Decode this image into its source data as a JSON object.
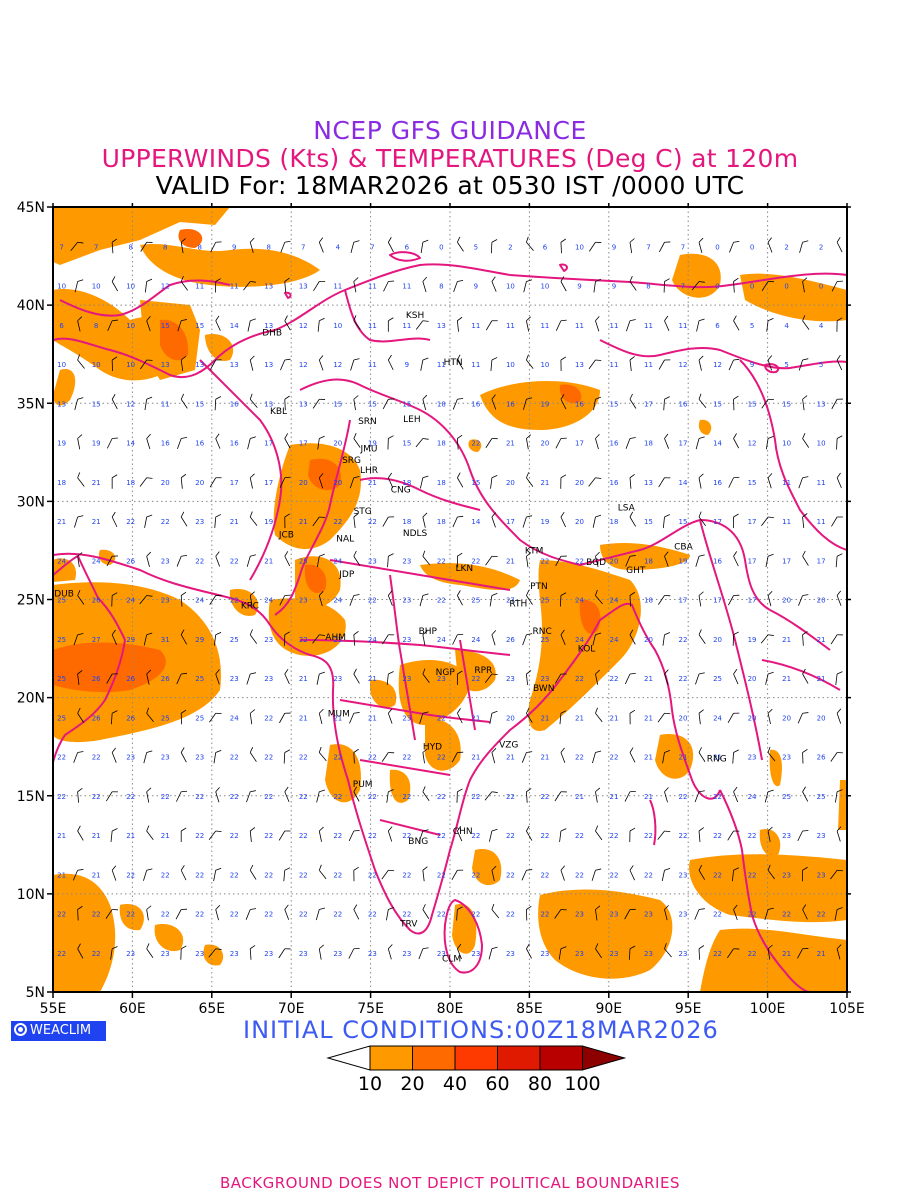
{
  "title": {
    "line1": "NCEP GFS GUIDANCE",
    "line2": "UPPERWINDS (Kts) & TEMPERATURES (Deg C) at 120m",
    "line3": "VALID For: 18MAR2026 at 0530 IST /0000 UTC"
  },
  "map": {
    "lon_range": [
      55,
      105
    ],
    "lat_range": [
      5,
      45
    ],
    "lon_ticks": [
      "55E",
      "60E",
      "65E",
      "70E",
      "75E",
      "80E",
      "85E",
      "90E",
      "95E",
      "100E",
      "105E"
    ],
    "lat_ticks": [
      "45N",
      "40N",
      "35N",
      "30N",
      "25N",
      "20N",
      "15N",
      "10N",
      "5N"
    ],
    "grid": "dotted every 5 degrees",
    "colors": {
      "coastline": "#e4177f",
      "temperature_numbers": "#1f43f0",
      "wind_barbs": "#000000",
      "station_labels": "#000000"
    },
    "stations": [
      {
        "code": "KSH",
        "lon": 77.8,
        "lat": 39.5
      },
      {
        "code": "DHB",
        "lon": 68.8,
        "lat": 38.6
      },
      {
        "code": "HTN",
        "lon": 80.2,
        "lat": 37.1
      },
      {
        "code": "KBL",
        "lon": 69.2,
        "lat": 34.6
      },
      {
        "code": "SRN",
        "lon": 74.8,
        "lat": 34.1
      },
      {
        "code": "LEH",
        "lon": 77.6,
        "lat": 34.2
      },
      {
        "code": "JMU",
        "lon": 74.9,
        "lat": 32.7
      },
      {
        "code": "SRG",
        "lon": 73.8,
        "lat": 32.1
      },
      {
        "code": "LHR",
        "lon": 74.9,
        "lat": 31.6
      },
      {
        "code": "CNG",
        "lon": 76.9,
        "lat": 30.6
      },
      {
        "code": "LSA",
        "lon": 91.1,
        "lat": 29.7
      },
      {
        "code": "STG",
        "lon": 74.5,
        "lat": 29.5
      },
      {
        "code": "JCB",
        "lon": 69.7,
        "lat": 28.3
      },
      {
        "code": "NAL",
        "lon": 73.4,
        "lat": 28.1
      },
      {
        "code": "NDLS",
        "lon": 77.8,
        "lat": 28.4
      },
      {
        "code": "CBA",
        "lon": 94.7,
        "lat": 27.7
      },
      {
        "code": "KTM",
        "lon": 85.3,
        "lat": 27.5
      },
      {
        "code": "BGD",
        "lon": 89.2,
        "lat": 26.9
      },
      {
        "code": "GHT",
        "lon": 91.7,
        "lat": 26.5
      },
      {
        "code": "LKN",
        "lon": 80.9,
        "lat": 26.6
      },
      {
        "code": "JDP",
        "lon": 73.5,
        "lat": 26.3
      },
      {
        "code": "PTN",
        "lon": 85.6,
        "lat": 25.7
      },
      {
        "code": "DUB",
        "lon": 55.7,
        "lat": 25.3
      },
      {
        "code": "KRC",
        "lon": 67.4,
        "lat": 24.7
      },
      {
        "code": "RTH",
        "lon": 84.3,
        "lat": 24.8
      },
      {
        "code": "RNC",
        "lon": 85.8,
        "lat": 23.4
      },
      {
        "code": "BHP",
        "lon": 78.6,
        "lat": 23.4
      },
      {
        "code": "AHM",
        "lon": 72.8,
        "lat": 23.1
      },
      {
        "code": "KOL",
        "lon": 88.6,
        "lat": 22.5
      },
      {
        "code": "NGP",
        "lon": 79.7,
        "lat": 21.3
      },
      {
        "code": "RPR",
        "lon": 82.1,
        "lat": 21.4
      },
      {
        "code": "BWN",
        "lon": 85.9,
        "lat": 20.5
      },
      {
        "code": "MUM",
        "lon": 73.0,
        "lat": 19.2
      },
      {
        "code": "HYD",
        "lon": 78.9,
        "lat": 17.5
      },
      {
        "code": "VZG",
        "lon": 83.7,
        "lat": 17.6
      },
      {
        "code": "RNG",
        "lon": 96.8,
        "lat": 16.9
      },
      {
        "code": "PUM",
        "lon": 74.5,
        "lat": 15.6
      },
      {
        "code": "CHN",
        "lon": 80.8,
        "lat": 13.2
      },
      {
        "code": "BNG",
        "lon": 78.0,
        "lat": 12.7
      },
      {
        "code": "TRV",
        "lon": 77.4,
        "lat": 8.5
      },
      {
        "code": "CLM",
        "lon": 80.1,
        "lat": 6.7
      }
    ],
    "temperature_rows": [
      {
        "lat": 43,
        "values": [
          7,
          7,
          8,
          8,
          8,
          9,
          8,
          7,
          4,
          7,
          6,
          0,
          5,
          2,
          6,
          10,
          9,
          7,
          7,
          0,
          0,
          2,
          2
        ]
      },
      {
        "lat": 41,
        "values": [
          10,
          10,
          10,
          12,
          11,
          11,
          13,
          13,
          11,
          11,
          11,
          8,
          9,
          10,
          10,
          9,
          9,
          8,
          7,
          0,
          0,
          0,
          0
        ]
      },
      {
        "lat": 39,
        "values": [
          6,
          8,
          10,
          15,
          15,
          14,
          13,
          12,
          10,
          11,
          11,
          13,
          11,
          11,
          11,
          11,
          11,
          11,
          11,
          6,
          5,
          4,
          4
        ]
      },
      {
        "lat": 37,
        "values": [
          10,
          10,
          10,
          13,
          13,
          13,
          13,
          12,
          12,
          11,
          9,
          11,
          11,
          10,
          10,
          13,
          11,
          11,
          12,
          12,
          9,
          5,
          5
        ]
      },
      {
        "lat": 35,
        "values": [
          13,
          15,
          12,
          11,
          15,
          16,
          13,
          13,
          15,
          15,
          15,
          18,
          16,
          16,
          19,
          16,
          15,
          17,
          16,
          15,
          15,
          15,
          13
        ]
      },
      {
        "lat": 33,
        "values": [
          19,
          19,
          14,
          16,
          16,
          16,
          17,
          17,
          20,
          19,
          15,
          18,
          22,
          21,
          20,
          17,
          16,
          18,
          17,
          14,
          12,
          10,
          10
        ]
      },
      {
        "lat": 31,
        "values": [
          18,
          21,
          18,
          20,
          20,
          17,
          17,
          20,
          20,
          21,
          18,
          18,
          15,
          20,
          21,
          20,
          16,
          13,
          14,
          16,
          15,
          11,
          11
        ]
      },
      {
        "lat": 29,
        "values": [
          21,
          21,
          22,
          22,
          23,
          21,
          19,
          21,
          22,
          22,
          18,
          18,
          14,
          17,
          19,
          20,
          18,
          15,
          15,
          17,
          17,
          11,
          11
        ]
      },
      {
        "lat": 27,
        "values": [
          24,
          24,
          26,
          23,
          22,
          22,
          21,
          25,
          24,
          23,
          23,
          22,
          22,
          21,
          22,
          22,
          20,
          18,
          19,
          16,
          17,
          17,
          17
        ]
      },
      {
        "lat": 25,
        "values": [
          25,
          26,
          24,
          23,
          24,
          22,
          24,
          23,
          24,
          22,
          23,
          22,
          25,
          27,
          25,
          24,
          24,
          18,
          17,
          17,
          17,
          20,
          20
        ]
      },
      {
        "lat": 23,
        "values": [
          25,
          27,
          29,
          31,
          29,
          25,
          23,
          22,
          23,
          24,
          23,
          24,
          24,
          26,
          25,
          24,
          24,
          20,
          22,
          20,
          19,
          21,
          21
        ]
      },
      {
        "lat": 21,
        "values": [
          25,
          26,
          26,
          26,
          25,
          23,
          23,
          21,
          23,
          21,
          23,
          23,
          22,
          23,
          23,
          22,
          22,
          21,
          22,
          25,
          20,
          21,
          21
        ]
      },
      {
        "lat": 19,
        "values": [
          25,
          26,
          26,
          25,
          25,
          24,
          22,
          21,
          21,
          21,
          23,
          22,
          21,
          20,
          21,
          21,
          21,
          21,
          20,
          24,
          20,
          20,
          20
        ]
      },
      {
        "lat": 17,
        "values": [
          22,
          22,
          23,
          23,
          23,
          22,
          22,
          22,
          22,
          22,
          22,
          22,
          21,
          21,
          21,
          22,
          22,
          21,
          21,
          21,
          23,
          23,
          26
        ]
      },
      {
        "lat": 15,
        "values": [
          22,
          22,
          22,
          22,
          22,
          22,
          22,
          22,
          22,
          22,
          22,
          22,
          22,
          22,
          22,
          21,
          21,
          21,
          22,
          22,
          24,
          25,
          25
        ]
      },
      {
        "lat": 13,
        "values": [
          21,
          21,
          21,
          21,
          22,
          22,
          22,
          22,
          22,
          22,
          22,
          22,
          22,
          22,
          22,
          22,
          22,
          22,
          22,
          22,
          22,
          23,
          23
        ]
      },
      {
        "lat": 11,
        "values": [
          21,
          21,
          22,
          22,
          22,
          22,
          22,
          22,
          22,
          22,
          22,
          22,
          22,
          22,
          22,
          22,
          22,
          22,
          23,
          22,
          22,
          23,
          23
        ]
      },
      {
        "lat": 9,
        "values": [
          22,
          22,
          22,
          22,
          22,
          22,
          22,
          22,
          22,
          22,
          22,
          22,
          22,
          22,
          22,
          23,
          23,
          23,
          23,
          22,
          22,
          22,
          22
        ]
      },
      {
        "lat": 7,
        "values": [
          22,
          22,
          23,
          23,
          23,
          23,
          23,
          23,
          23,
          23,
          23,
          23,
          23,
          23,
          23,
          23,
          23,
          23,
          23,
          22,
          22,
          21,
          21
        ]
      }
    ]
  },
  "init_text": "INITIAL CONDITIONS:00Z18MAR2026",
  "logo_text": "WEACLIM",
  "colorbar": {
    "labels": [
      "10",
      "20",
      "40",
      "60",
      "80",
      "100"
    ],
    "colors": [
      "#ffffff",
      "#ff9900",
      "#ff6a00",
      "#ff3a00",
      "#e01a00",
      "#b80000",
      "#8c0000"
    ]
  },
  "footer": "BACKGROUND DOES NOT DEPICT POLITICAL BOUNDARIES"
}
